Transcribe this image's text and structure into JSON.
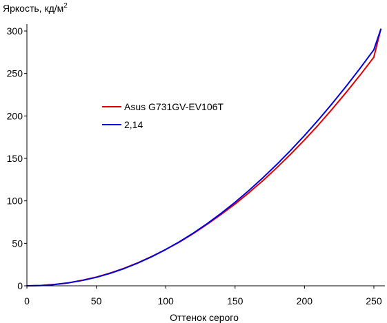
{
  "chart_data": {
    "type": "line",
    "title": "",
    "ylabel": "Яркость, кд/м",
    "ylabel_superscript": "2",
    "xlabel": "Оттенок серого",
    "xlim": [
      0,
      255
    ],
    "ylim": [
      0,
      300
    ],
    "xticks": [
      0,
      50,
      100,
      150,
      200,
      250
    ],
    "yticks": [
      0,
      50,
      100,
      150,
      200,
      250,
      300
    ],
    "grid": false,
    "legend_position": "left-middle",
    "series": [
      {
        "name": "Asus G731GV-EV106T",
        "color": "#e00000",
        "x": [
          0,
          10,
          20,
          30,
          40,
          50,
          60,
          70,
          80,
          90,
          100,
          110,
          120,
          130,
          140,
          150,
          160,
          170,
          180,
          190,
          200,
          210,
          220,
          230,
          240,
          250,
          255
        ],
        "y": [
          0,
          0.4,
          1.6,
          3.6,
          6.6,
          10.3,
          15.0,
          20.6,
          27.2,
          34.6,
          42.7,
          51.6,
          61.6,
          72.5,
          84.1,
          96.3,
          109.6,
          123.7,
          138.9,
          154.9,
          171.7,
          189.4,
          208.1,
          227.6,
          247.9,
          269.1,
          302
        ]
      },
      {
        "name": "2,14",
        "color": "#0000e0",
        "x": [
          0,
          10,
          20,
          30,
          40,
          50,
          60,
          70,
          80,
          90,
          100,
          110,
          120,
          130,
          140,
          150,
          160,
          170,
          180,
          190,
          200,
          210,
          220,
          230,
          240,
          250,
          255
        ],
        "y": [
          0,
          0.3,
          1.5,
          3.5,
          6.3,
          10.0,
          14.7,
          20.3,
          26.8,
          34.3,
          42.7,
          52.0,
          62.2,
          73.3,
          85.4,
          98.4,
          112.3,
          127.1,
          142.8,
          159.4,
          176.9,
          195.3,
          214.6,
          234.8,
          255.9,
          277.9,
          302
        ]
      }
    ]
  }
}
